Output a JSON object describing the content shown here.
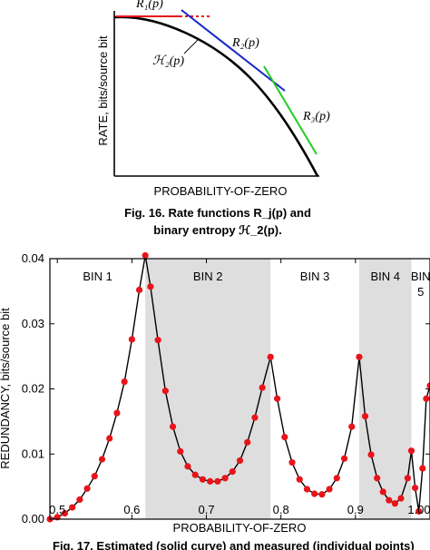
{
  "chart_data": [
    {
      "type": "line",
      "xlabel": "PROBABILITY-OF-ZERO",
      "ylabel": "RATE, bits/source bit",
      "caption_line1": "Fig. 16.  Rate functions R_j(p) and",
      "caption_line2": "binary entropy ℋ_2(p).",
      "series": [
        {
          "name": "R1(p)",
          "color": "#e8141a",
          "style": "solid-then-dashed"
        },
        {
          "name": "R2(p)",
          "color": "#1426c8"
        },
        {
          "name": "R3(p)",
          "color": "#22cc22"
        },
        {
          "name": "ℋ2(p)",
          "color": "#000000"
        }
      ],
      "labels": {
        "r1": "R₁(p)",
        "r2": "R₂(p)",
        "r3": "R₃(p)",
        "h2": "ℋ₂(p)"
      }
    },
    {
      "type": "scatter",
      "xlabel": "PROBABILITY-OF-ZERO",
      "ylabel": "REDUNDANCY, bits/source bit",
      "xlim": [
        0.49,
        1.0
      ],
      "ylim": [
        0.0,
        0.04
      ],
      "xticks": [
        "0.5",
        "0.6",
        "0.7",
        "0.8",
        "0.9",
        "1.00"
      ],
      "yticks": [
        "0.00",
        "0.01",
        "0.02",
        "0.03",
        "0.04"
      ],
      "bins": [
        {
          "label": "BIN 1",
          "x0": 0.49,
          "x1": 0.618,
          "shaded": false
        },
        {
          "label": "BIN 2",
          "x0": 0.618,
          "x1": 0.786,
          "shaded": true
        },
        {
          "label": "BIN 3",
          "x0": 0.786,
          "x1": 0.905,
          "shaded": false
        },
        {
          "label": "BIN 4",
          "x0": 0.905,
          "x1": 0.975,
          "shaded": true
        },
        {
          "label": "BIN\n5",
          "x0": 0.975,
          "x1": 1.0,
          "shaded": false
        }
      ],
      "series": [
        {
          "name": "Estimated",
          "style": "solid",
          "x": [
            0.49,
            0.5,
            0.51,
            0.52,
            0.53,
            0.54,
            0.55,
            0.56,
            0.57,
            0.58,
            0.59,
            0.6,
            0.61,
            0.618,
            0.625,
            0.635,
            0.645,
            0.655,
            0.665,
            0.675,
            0.685,
            0.695,
            0.705,
            0.715,
            0.725,
            0.735,
            0.745,
            0.755,
            0.765,
            0.775,
            0.786,
            0.795,
            0.805,
            0.815,
            0.825,
            0.835,
            0.845,
            0.855,
            0.865,
            0.875,
            0.885,
            0.895,
            0.905,
            0.913,
            0.921,
            0.929,
            0.937,
            0.945,
            0.953,
            0.961,
            0.97,
            0.975,
            0.98,
            0.985,
            0.99,
            0.995,
            1.0
          ],
          "y": [
            0.0,
            0.0003,
            0.0009,
            0.0018,
            0.003,
            0.0047,
            0.0066,
            0.0092,
            0.0124,
            0.0163,
            0.0211,
            0.0276,
            0.0352,
            0.0405,
            0.0357,
            0.0275,
            0.0197,
            0.0142,
            0.0104,
            0.0081,
            0.0068,
            0.0061,
            0.0058,
            0.0058,
            0.0063,
            0.0073,
            0.009,
            0.0118,
            0.0156,
            0.0202,
            0.0249,
            0.0185,
            0.0126,
            0.0087,
            0.0061,
            0.0046,
            0.0039,
            0.0038,
            0.0046,
            0.0063,
            0.0093,
            0.0142,
            0.0249,
            0.0158,
            0.0099,
            0.0063,
            0.0042,
            0.0029,
            0.0024,
            0.0032,
            0.0063,
            0.0105,
            0.0048,
            0.0012,
            0.0078,
            0.0185,
            0.0205
          ]
        },
        {
          "name": "Measured",
          "style": "points",
          "color": "#e8141a",
          "x": [
            0.49,
            0.5,
            0.51,
            0.52,
            0.53,
            0.54,
            0.55,
            0.56,
            0.57,
            0.58,
            0.59,
            0.6,
            0.61,
            0.618,
            0.625,
            0.635,
            0.645,
            0.655,
            0.665,
            0.675,
            0.685,
            0.695,
            0.705,
            0.715,
            0.725,
            0.735,
            0.745,
            0.755,
            0.765,
            0.775,
            0.786,
            0.795,
            0.805,
            0.815,
            0.825,
            0.835,
            0.845,
            0.855,
            0.865,
            0.875,
            0.885,
            0.895,
            0.905,
            0.913,
            0.921,
            0.929,
            0.937,
            0.945,
            0.953,
            0.961,
            0.97,
            0.975,
            0.98,
            0.985,
            0.99,
            0.995,
            1.0
          ],
          "y": [
            0.0,
            0.0003,
            0.0009,
            0.0018,
            0.003,
            0.0047,
            0.0066,
            0.0092,
            0.0124,
            0.0163,
            0.0211,
            0.0276,
            0.0352,
            0.0405,
            0.0357,
            0.0275,
            0.0197,
            0.0142,
            0.0104,
            0.0081,
            0.0068,
            0.0061,
            0.0058,
            0.0058,
            0.0063,
            0.0073,
            0.009,
            0.0118,
            0.0156,
            0.0202,
            0.0249,
            0.0185,
            0.0126,
            0.0087,
            0.0061,
            0.0046,
            0.0039,
            0.0038,
            0.0046,
            0.0063,
            0.0093,
            0.0142,
            0.0249,
            0.0158,
            0.0099,
            0.0063,
            0.0042,
            0.0029,
            0.0024,
            0.0032,
            0.0063,
            0.0105,
            0.0048,
            0.0012,
            0.0078,
            0.0185,
            0.0205
          ]
        }
      ],
      "caption": "Fig. 17.  Estimated (solid curve) and measured (individual points)"
    }
  ]
}
